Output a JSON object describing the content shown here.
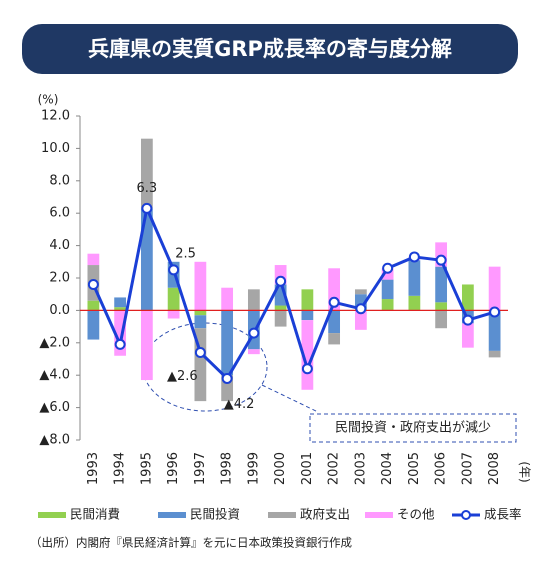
{
  "chart_data": {
    "type": "stacked_bar_line",
    "title": "兵庫県の実質GRP成長率の寄与度分解",
    "y_unit": "(%)",
    "x_unit": "(年)",
    "categories": [
      "1993",
      "1994",
      "1995",
      "1996",
      "1997",
      "1998",
      "1999",
      "2000",
      "2001",
      "2002",
      "2003",
      "2004",
      "2005",
      "2006",
      "2007",
      "2008"
    ],
    "series": [
      {
        "name": "民間消費",
        "type": "bar",
        "color": "#92d050",
        "values": [
          0.6,
          0.2,
          0,
          1.4,
          -0.3,
          0,
          0,
          0.3,
          1.3,
          0,
          0.1,
          0.7,
          0.9,
          0.5,
          1.6,
          0
        ]
      },
      {
        "name": "民間投資",
        "type": "bar",
        "color": "#5b8fd0",
        "values": [
          -1.8,
          0.6,
          6.3,
          1.6,
          -0.8,
          -4.0,
          -2.4,
          1.3,
          -0.6,
          -1.4,
          0.9,
          1.2,
          2.2,
          2.2,
          -0.8,
          -2.5
        ]
      },
      {
        "name": "政府支出",
        "type": "bar",
        "color": "#a6a6a6",
        "values": [
          2.2,
          0,
          4.3,
          0,
          -4.5,
          -1.6,
          1.3,
          -1.0,
          0,
          -0.7,
          0.3,
          0,
          0,
          -1.1,
          0,
          -0.4
        ]
      },
      {
        "name": "その他",
        "type": "bar",
        "color": "#ff99ff",
        "values": [
          0.7,
          -2.8,
          -4.3,
          -0.5,
          3.0,
          1.4,
          -0.3,
          1.2,
          -4.3,
          2.6,
          -1.2,
          0.7,
          0.2,
          1.5,
          -1.5,
          2.7
        ]
      },
      {
        "name": "成長率",
        "type": "line",
        "color": "#1a3fd6",
        "values": [
          1.6,
          -2.1,
          6.3,
          2.5,
          -2.6,
          -4.2,
          -1.4,
          1.8,
          -3.6,
          0.5,
          0.1,
          2.6,
          3.3,
          3.1,
          -0.6,
          -0.1
        ],
        "value_labels": [
          null,
          null,
          "6.3",
          "2.5",
          "▲2.6",
          "▲4.2",
          null,
          null,
          null,
          null,
          null,
          null,
          null,
          null,
          null,
          null
        ]
      }
    ],
    "ylim": [
      -8,
      12
    ],
    "yticks": [
      {
        "value": 12,
        "label": "12.0"
      },
      {
        "value": 10,
        "label": "10.0"
      },
      {
        "value": 8,
        "label": "8.0"
      },
      {
        "value": 6,
        "label": "6.0"
      },
      {
        "value": 4,
        "label": "4.0"
      },
      {
        "value": 2,
        "label": "2.0"
      },
      {
        "value": 0,
        "label": "0.0"
      },
      {
        "value": -2,
        "label": "▲2.0"
      },
      {
        "value": -4,
        "label": "▲4.0"
      },
      {
        "value": -6,
        "label": "▲6.0"
      },
      {
        "value": -8,
        "label": "▲8.0"
      }
    ],
    "annotation": "民間投資・政府支出が減少",
    "source": "（出所）内閣府『県民経済計算』を元に日本政策投資銀行作成"
  }
}
